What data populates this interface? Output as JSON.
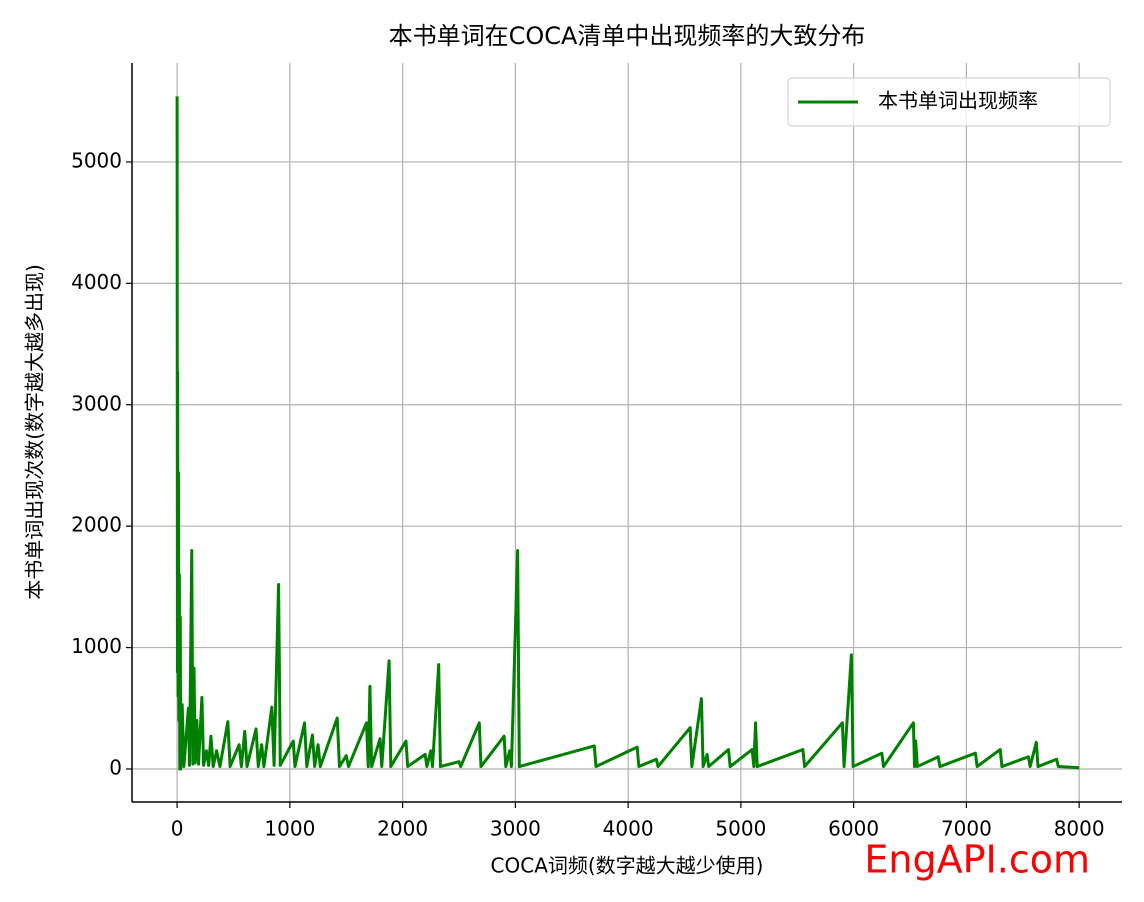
{
  "chart_data": {
    "type": "line",
    "title": "本书单词在COCA清单中出现频率的大致分布",
    "xlabel": "COCA词频(数字越大越少使用)",
    "ylabel": "本书单词出现次数(数字越大越多出现)",
    "watermark": "EngAPI.com",
    "xlim": [
      -400,
      8380
    ],
    "ylim": [
      -272,
      5815
    ],
    "xticks": [
      0,
      1000,
      2000,
      3000,
      4000,
      5000,
      6000,
      7000,
      8000
    ],
    "yticks": [
      0,
      1000,
      2000,
      3000,
      4000,
      5000
    ],
    "grid": true,
    "legend": "upper right",
    "x": [
      0,
      3,
      5,
      8,
      12,
      16,
      20,
      24,
      28,
      32,
      45,
      60,
      100,
      110,
      130,
      140,
      150,
      160,
      175,
      190,
      220,
      235,
      260,
      280,
      300,
      320,
      350,
      380,
      450,
      470,
      550,
      570,
      600,
      620,
      700,
      720,
      750,
      770,
      840,
      860,
      900,
      915,
      1030,
      1045,
      1130,
      1150,
      1200,
      1220,
      1250,
      1270,
      1420,
      1440,
      1500,
      1520,
      1680,
      1695,
      1710,
      1725,
      1800,
      1815,
      1880,
      1895,
      2030,
      2045,
      2200,
      2215,
      2250,
      2265,
      2320,
      2335,
      2500,
      2515,
      2680,
      2695,
      2900,
      2915,
      2950,
      2965,
      3020,
      3035,
      3700,
      3715,
      4080,
      4095,
      4250,
      4265,
      4550,
      4565,
      4650,
      4665,
      4700,
      4715,
      4890,
      4905,
      5100,
      5115,
      5130,
      5145,
      5550,
      5565,
      5900,
      5915,
      5980,
      5995,
      6250,
      6265,
      6530,
      6540,
      6550,
      6565,
      6750,
      6765,
      7080,
      7095,
      7300,
      7315,
      7550,
      7565,
      7620,
      7635,
      7800,
      7815,
      8000
    ],
    "series": [
      {
        "name": "本书单词出现频率",
        "color": "#008000",
        "values": [
          5540,
          800,
          3270,
          600,
          2440,
          400,
          1600,
          0,
          1250,
          0,
          530,
          20,
          500,
          30,
          1800,
          40,
          830,
          50,
          400,
          40,
          590,
          30,
          150,
          30,
          270,
          20,
          150,
          20,
          390,
          20,
          200,
          20,
          310,
          20,
          330,
          20,
          200,
          20,
          510,
          30,
          1520,
          30,
          230,
          20,
          380,
          20,
          280,
          20,
          200,
          20,
          420,
          20,
          110,
          20,
          380,
          20,
          680,
          20,
          250,
          20,
          890,
          20,
          230,
          20,
          120,
          20,
          150,
          20,
          860,
          20,
          60,
          20,
          380,
          20,
          270,
          20,
          150,
          20,
          1800,
          20,
          190,
          20,
          180,
          20,
          80,
          20,
          340,
          20,
          580,
          20,
          120,
          20,
          160,
          20,
          160,
          20,
          380,
          20,
          160,
          20,
          380,
          20,
          940,
          20,
          130,
          20,
          380,
          20,
          230,
          20,
          100,
          20,
          130,
          20,
          160,
          20,
          100,
          20,
          220,
          20,
          80,
          20,
          10
        ]
      }
    ]
  }
}
